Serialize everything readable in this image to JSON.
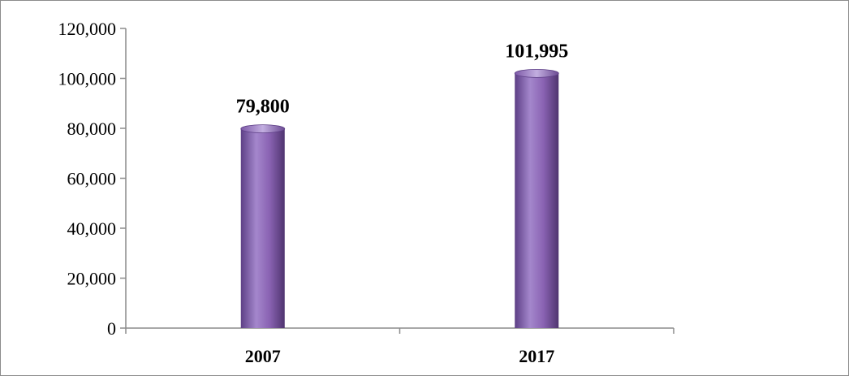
{
  "chart_data": {
    "type": "bar",
    "categories": [
      "2007",
      "2017"
    ],
    "values": [
      79800,
      101995
    ],
    "data_labels": [
      "79,800",
      "101,995"
    ],
    "title": "",
    "xlabel": "",
    "ylabel": "",
    "ylim": [
      0,
      120000
    ],
    "yticks": [
      0,
      20000,
      40000,
      60000,
      80000,
      100000,
      120000
    ],
    "ytick_labels": [
      "0",
      "20,000",
      "40,000",
      "60,000",
      "80,000",
      "100,000",
      "120,000"
    ],
    "grid": false,
    "legend": "none",
    "bar_color": "#8a63b3"
  }
}
